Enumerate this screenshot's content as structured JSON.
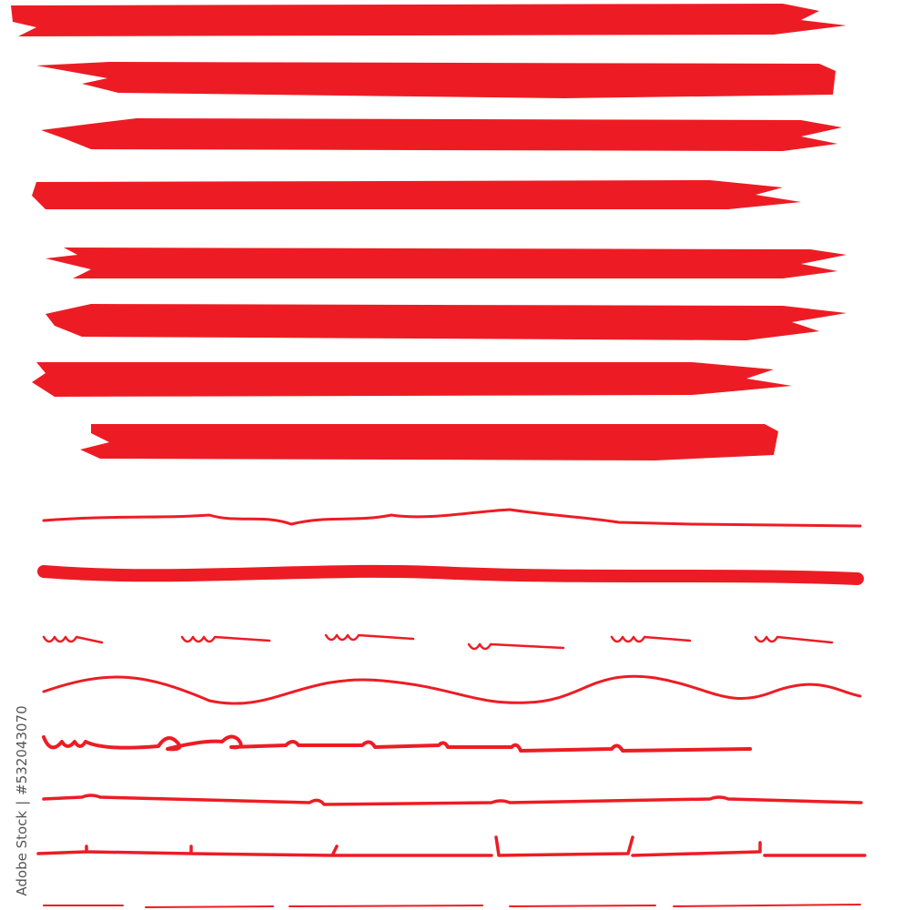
{
  "colors": {
    "stroke": "#ed1c24",
    "background": "#ffffff",
    "credit_text": "#555555"
  },
  "credit": {
    "brand": "Adobe Stock",
    "separator": "|",
    "asset_id": "#532043070"
  }
}
